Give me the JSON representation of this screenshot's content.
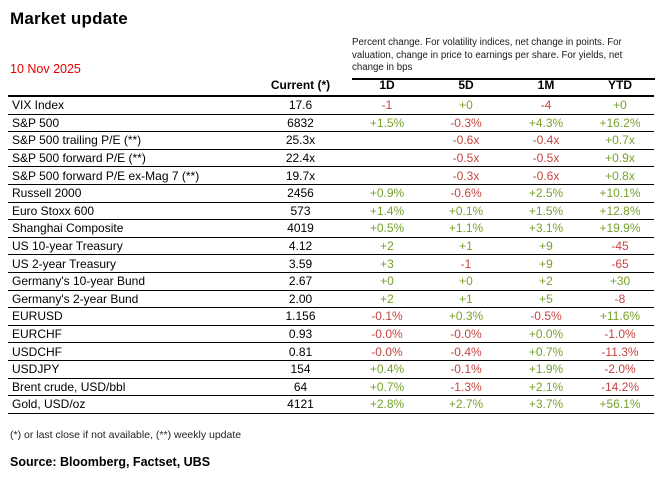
{
  "header": {
    "title": "Market update",
    "date": "10 Nov 2025",
    "note": "Percent change. For volatility indices, net change in points. For valuation, change in price to earnings per share. For yields,  net change in bps"
  },
  "colors": {
    "positive_green": "#76a22b",
    "negative_red": "#c5443f",
    "date_red": "#e60000",
    "line_black": "#000000"
  },
  "table": {
    "columns": [
      "Current (*)",
      "1D",
      "5D",
      "1M",
      "YTD"
    ],
    "rows": [
      {
        "label": "VIX Index",
        "current": "17.6",
        "changes": [
          "-1",
          "+0",
          "-4",
          "+0"
        ]
      },
      {
        "label": "S&P 500",
        "current": "6832",
        "changes": [
          "+1.5%",
          "-0.3%",
          "+4.3%",
          "+16.2%"
        ]
      },
      {
        "label": "S&P 500 trailing P/E (**)",
        "current": "25.3x",
        "changes": [
          "",
          "-0.6x",
          "-0.4x",
          "+0.7x"
        ]
      },
      {
        "label": "S&P 500 forward P/E (**)",
        "current": "22.4x",
        "changes": [
          "",
          "-0.5x",
          "-0.5x",
          "+0.9x"
        ]
      },
      {
        "label": "S&P 500 forward P/E ex-Mag 7 (**)",
        "current": "19.7x",
        "changes": [
          "",
          "-0.3x",
          "-0.6x",
          "+0.8x"
        ]
      },
      {
        "label": "Russell 2000",
        "current": "2456",
        "changes": [
          "+0.9%",
          "-0.6%",
          "+2.5%",
          "+10.1%"
        ]
      },
      {
        "label": "Euro Stoxx 600",
        "current": "573",
        "changes": [
          "+1.4%",
          "+0.1%",
          "+1.5%",
          "+12.8%"
        ]
      },
      {
        "label": "Shanghai Composite",
        "current": "4019",
        "changes": [
          "+0.5%",
          "+1.1%",
          "+3.1%",
          "+19.9%"
        ]
      },
      {
        "label": "US 10-year Treasury",
        "current": "4.12",
        "changes": [
          "+2",
          "+1",
          "+9",
          "-45"
        ]
      },
      {
        "label": "US 2-year Treasury",
        "current": "3.59",
        "changes": [
          "+3",
          "-1",
          "+9",
          "-65"
        ]
      },
      {
        "label": "Germany's 10-year Bund",
        "current": "2.67",
        "changes": [
          "+0",
          "+0",
          "+2",
          "+30"
        ]
      },
      {
        "label": "Germany's 2-year Bund",
        "current": "2.00",
        "changes": [
          "+2",
          "+1",
          "+5",
          "-8"
        ]
      },
      {
        "label": "EURUSD",
        "current": "1.156",
        "changes": [
          "-0.1%",
          "+0.3%",
          "-0.5%",
          "+11.6%"
        ]
      },
      {
        "label": "EURCHF",
        "current": "0.93",
        "changes": [
          "-0.0%",
          "-0.0%",
          "+0.0%",
          "-1.0%"
        ]
      },
      {
        "label": "USDCHF",
        "current": "0.81",
        "changes": [
          "-0.0%",
          "-0.4%",
          "+0.7%",
          "-11.3%"
        ]
      },
      {
        "label": "USDJPY",
        "current": "154",
        "changes": [
          "+0.4%",
          "-0.1%",
          "+1.9%",
          "-2.0%"
        ]
      },
      {
        "label": "Brent crude, USD/bbl",
        "current": "64",
        "changes": [
          "+0.7%",
          "-1.3%",
          "+2.1%",
          "-14.2%"
        ]
      },
      {
        "label": "Gold,  USD/oz",
        "current": "4121",
        "changes": [
          "+2.8%",
          "+2.7%",
          "+3.7%",
          "+56.1%"
        ]
      }
    ]
  },
  "footer": {
    "footnote": "(*) or last close if not available, (**) weekly update",
    "source": "Source: Bloomberg, Factset, UBS"
  }
}
